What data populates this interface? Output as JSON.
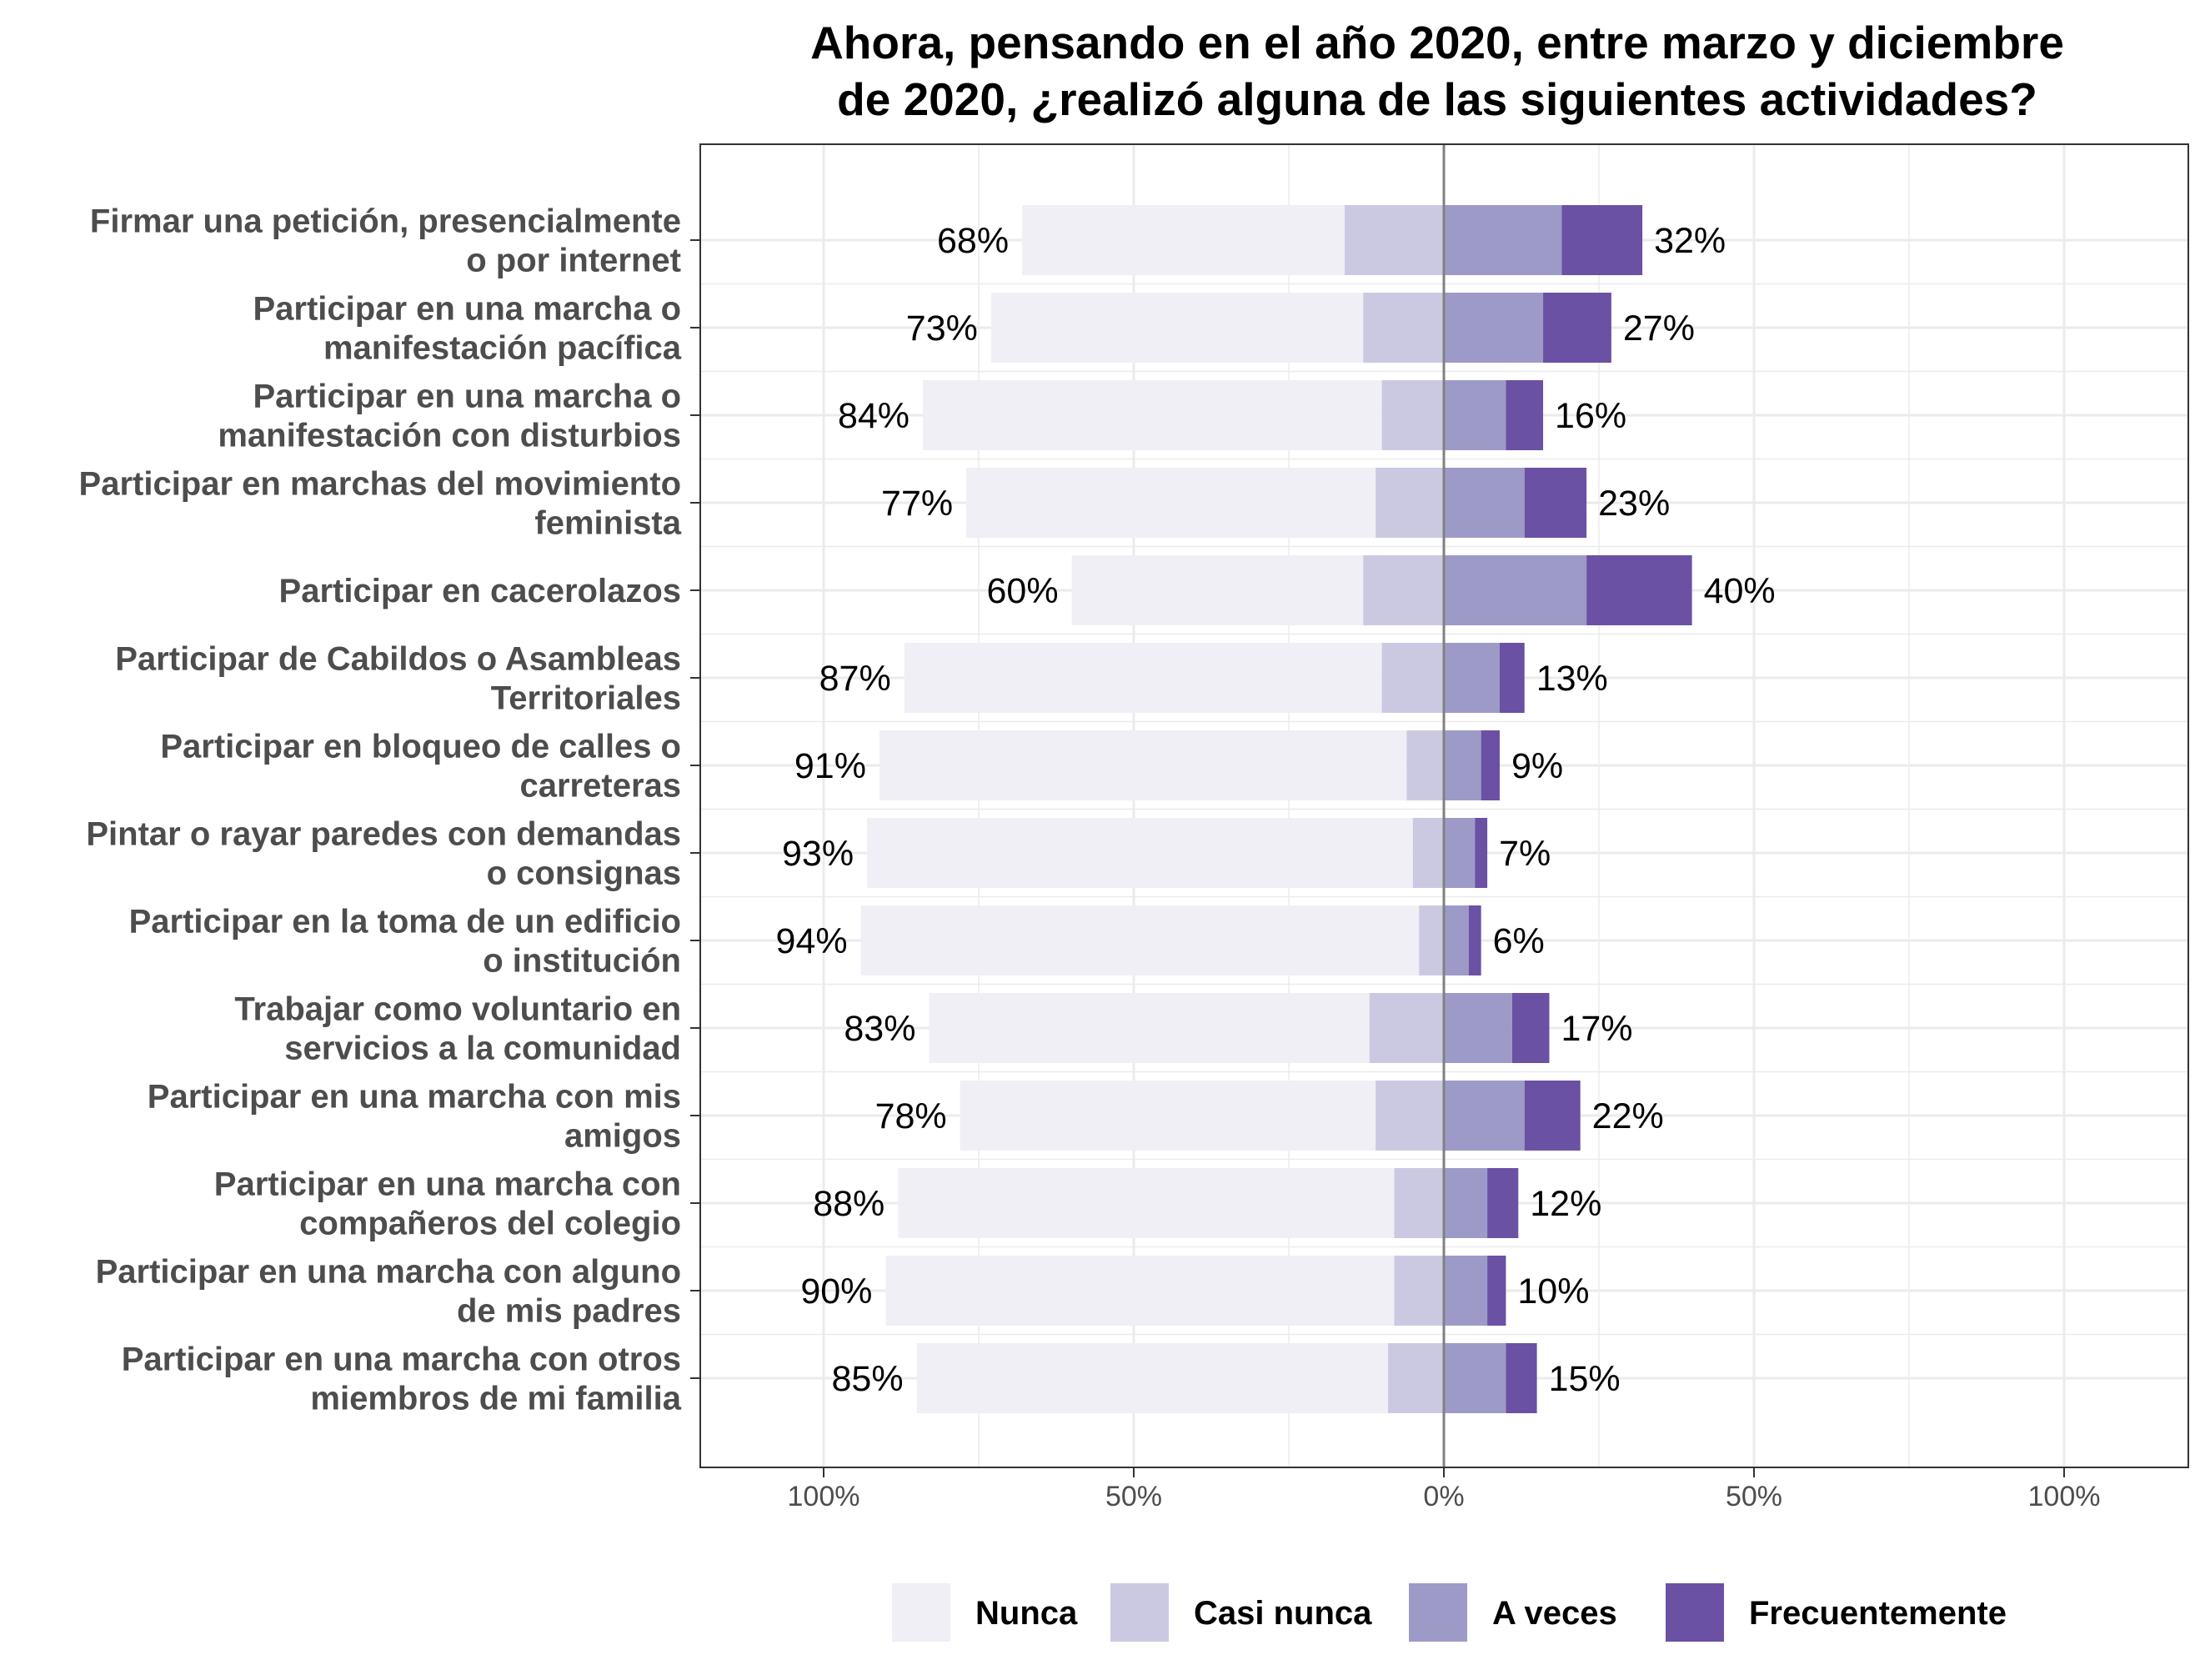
{
  "chart_data": {
    "type": "bar",
    "orientation": "horizontal-diverging",
    "title": "Ahora, pensando en el año 2020, entre marzo y diciembre de 2020, ¿realizó alguna de las siguientes actividades?",
    "title_lines": [
      "Ahora, pensando en el año 2020, entre marzo y diciembre",
      "de 2020, ¿realizó alguna de las siguientes actividades?"
    ],
    "xlim": [
      -1.2,
      1.2
    ],
    "x_ticks": [
      {
        "value": -1.0,
        "label": "100%"
      },
      {
        "value": -0.5,
        "label": "50%"
      },
      {
        "value": 0.0,
        "label": "0%"
      },
      {
        "value": 0.5,
        "label": "50%"
      },
      {
        "value": 1.0,
        "label": "100%"
      }
    ],
    "grid": true,
    "legend_position": "bottom",
    "colors": {
      "Nunca": "#f0eff6",
      "Casi nunca": "#cbc9e2",
      "A veces": "#9e9ac8",
      "Frecuentemente": "#6a51a3",
      "zero_line": "#808080",
      "grid": "#ebebeb",
      "panel_border": "#333333"
    },
    "legend": [
      "Nunca",
      "Casi nunca",
      "A veces",
      "Frecuentemente"
    ],
    "categories": [
      {
        "label_lines": [
          "Firmar una petición, presencialmente",
          "o por internet"
        ],
        "nunca": 52,
        "casi_nunca": 16,
        "a_veces": 19,
        "frecuentemente": 13,
        "neg_label": "68%",
        "pos_label": "32%"
      },
      {
        "label_lines": [
          "Participar en una marcha o",
          "manifestación pacífica"
        ],
        "nunca": 60,
        "casi_nunca": 13,
        "a_veces": 16,
        "frecuentemente": 11,
        "neg_label": "73%",
        "pos_label": "27%"
      },
      {
        "label_lines": [
          "Participar en una marcha o",
          "manifestación con disturbios"
        ],
        "nunca": 74,
        "casi_nunca": 10,
        "a_veces": 10,
        "frecuentemente": 6,
        "neg_label": "84%",
        "pos_label": "16%"
      },
      {
        "label_lines": [
          "Participar en marchas del movimiento",
          "feminista"
        ],
        "nunca": 66,
        "casi_nunca": 11,
        "a_veces": 13,
        "frecuentemente": 10,
        "neg_label": "77%",
        "pos_label": "23%"
      },
      {
        "label_lines": [
          "Participar en cacerolazos"
        ],
        "nunca": 47,
        "casi_nunca": 13,
        "a_veces": 23,
        "frecuentemente": 17,
        "neg_label": "60%",
        "pos_label": "40%"
      },
      {
        "label_lines": [
          "Participar de Cabildos o Asambleas",
          "Territoriales"
        ],
        "nunca": 77,
        "casi_nunca": 10,
        "a_veces": 9,
        "frecuentemente": 4,
        "neg_label": "87%",
        "pos_label": "13%"
      },
      {
        "label_lines": [
          "Participar en bloqueo de calles o",
          "carreteras"
        ],
        "nunca": 85,
        "casi_nunca": 6,
        "a_veces": 6,
        "frecuentemente": 3,
        "neg_label": "91%",
        "pos_label": "9%"
      },
      {
        "label_lines": [
          "Pintar o rayar paredes con demandas",
          "o consignas"
        ],
        "nunca": 88,
        "casi_nunca": 5,
        "a_veces": 5,
        "frecuentemente": 2,
        "neg_label": "93%",
        "pos_label": "7%"
      },
      {
        "label_lines": [
          "Participar en la toma de un edificio",
          "o institución"
        ],
        "nunca": 90,
        "casi_nunca": 4,
        "a_veces": 4,
        "frecuentemente": 2,
        "neg_label": "94%",
        "pos_label": "6%"
      },
      {
        "label_lines": [
          "Trabajar como voluntario en",
          "servicios a la comunidad"
        ],
        "nunca": 71,
        "casi_nunca": 12,
        "a_veces": 11,
        "frecuentemente": 6,
        "neg_label": "83%",
        "pos_label": "17%"
      },
      {
        "label_lines": [
          "Participar en una marcha con mis",
          "amigos"
        ],
        "nunca": 67,
        "casi_nunca": 11,
        "a_veces": 13,
        "frecuentemente": 9,
        "neg_label": "78%",
        "pos_label": "22%"
      },
      {
        "label_lines": [
          "Participar en una marcha con",
          "compañeros del colegio"
        ],
        "nunca": 80,
        "casi_nunca": 8,
        "a_veces": 7,
        "frecuentemente": 5,
        "neg_label": "88%",
        "pos_label": "12%"
      },
      {
        "label_lines": [
          "Participar en una marcha con alguno",
          "de mis padres"
        ],
        "nunca": 82,
        "casi_nunca": 8,
        "a_veces": 7,
        "frecuentemente": 3,
        "neg_label": "90%",
        "pos_label": "10%"
      },
      {
        "label_lines": [
          "Participar en una marcha con otros",
          "miembros de mi familia"
        ],
        "nunca": 76,
        "casi_nunca": 9,
        "a_veces": 10,
        "frecuentemente": 5,
        "neg_label": "85%",
        "pos_label": "15%"
      }
    ]
  }
}
